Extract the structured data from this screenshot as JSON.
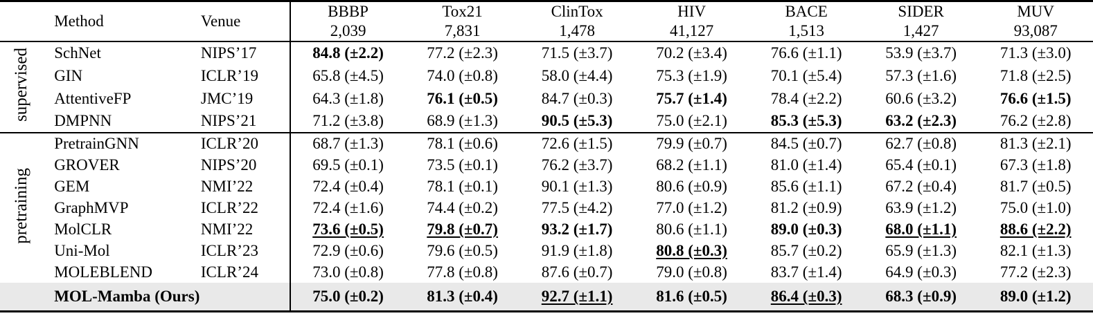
{
  "table": {
    "col_headers": {
      "method": "Method",
      "venue": "Venue"
    },
    "datasets": [
      {
        "name": "BBBP",
        "size": "2,039"
      },
      {
        "name": "Tox21",
        "size": "7,831"
      },
      {
        "name": "ClinTox",
        "size": "1,478"
      },
      {
        "name": "HIV",
        "size": "41,127"
      },
      {
        "name": "BACE",
        "size": "1,513"
      },
      {
        "name": "SIDER",
        "size": "1,427"
      },
      {
        "name": "MUV",
        "size": "93,087"
      }
    ],
    "groups": [
      {
        "label": "supervised",
        "rows": [
          {
            "method": "SchNet",
            "venue": "NIPS’17",
            "cells": [
              {
                "text": "84.8 (±2.2)",
                "bold": true
              },
              {
                "text": "77.2 (±2.3)"
              },
              {
                "text": "71.5 (±3.7)"
              },
              {
                "text": "70.2 (±3.4)"
              },
              {
                "text": "76.6 (±1.1)"
              },
              {
                "text": "53.9 (±3.7)"
              },
              {
                "text": "71.3 (±3.0)"
              }
            ]
          },
          {
            "method": "GIN",
            "venue": "ICLR’19",
            "cells": [
              {
                "text": "65.8 (±4.5)"
              },
              {
                "text": "74.0 (±0.8)"
              },
              {
                "text": "58.0 (±4.4)"
              },
              {
                "text": "75.3 (±1.9)"
              },
              {
                "text": "70.1 (±5.4)"
              },
              {
                "text": "57.3 (±1.6)"
              },
              {
                "text": "71.8 (±2.5)"
              }
            ]
          },
          {
            "method": "AttentiveFP",
            "venue": "JMC’19",
            "cells": [
              {
                "text": "64.3 (±1.8)"
              },
              {
                "text": "76.1 (±0.5)",
                "bold": true
              },
              {
                "text": "84.7 (±0.3)"
              },
              {
                "text": "75.7 (±1.4)",
                "bold": true
              },
              {
                "text": "78.4 (±2.2)"
              },
              {
                "text": "60.6 (±3.2)"
              },
              {
                "text": "76.6 (±1.5)",
                "bold": true
              }
            ]
          },
          {
            "method": "DMPNN",
            "venue": "NIPS’21",
            "cells": [
              {
                "text": "71.2 (±3.8)"
              },
              {
                "text": "68.9 (±1.3)"
              },
              {
                "text": "90.5 (±5.3)",
                "bold": true
              },
              {
                "text": "75.0 (±2.1)"
              },
              {
                "text": "85.3 (±5.3)",
                "bold": true
              },
              {
                "text": "63.2 (±2.3)",
                "bold": true
              },
              {
                "text": "76.2 (±2.8)"
              }
            ]
          }
        ]
      },
      {
        "label": "pretraining",
        "rows": [
          {
            "method": "PretrainGNN",
            "venue": "ICLR’20",
            "cells": [
              {
                "text": "68.7 (±1.3)"
              },
              {
                "text": "78.1 (±0.6)"
              },
              {
                "text": "72.6 (±1.5)"
              },
              {
                "text": "79.9 (±0.7)"
              },
              {
                "text": "84.5 (±0.7)"
              },
              {
                "text": "62.7 (±0.8)"
              },
              {
                "text": "81.3 (±2.1)"
              }
            ]
          },
          {
            "method": "GROVER",
            "venue": "NIPS’20",
            "cells": [
              {
                "text": "69.5 (±0.1)"
              },
              {
                "text": "73.5 (±0.1)"
              },
              {
                "text": "76.2 (±3.7)"
              },
              {
                "text": "68.2 (±1.1)"
              },
              {
                "text": "81.0 (±1.4)"
              },
              {
                "text": "65.4 (±0.1)"
              },
              {
                "text": "67.3 (±1.8)"
              }
            ]
          },
          {
            "method": "GEM",
            "venue": "NMI’22",
            "cells": [
              {
                "text": "72.4 (±0.4)"
              },
              {
                "text": "78.1 (±0.1)"
              },
              {
                "text": "90.1 (±1.3)"
              },
              {
                "text": "80.6 (±0.9)"
              },
              {
                "text": "85.6 (±1.1)"
              },
              {
                "text": "67.2 (±0.4)"
              },
              {
                "text": "81.7 (±0.5)"
              }
            ]
          },
          {
            "method": "GraphMVP",
            "venue": "ICLR’22",
            "cells": [
              {
                "text": "72.4 (±1.6)"
              },
              {
                "text": "74.4 (±0.2)"
              },
              {
                "text": "77.5 (±4.2)"
              },
              {
                "text": "77.0 (±1.2)"
              },
              {
                "text": "81.2 (±0.9)"
              },
              {
                "text": "63.9 (±1.2)"
              },
              {
                "text": "75.0 (±1.0)"
              }
            ]
          },
          {
            "method": "MolCLR",
            "venue": "NMI’22",
            "cells": [
              {
                "text": "73.6 (±0.5)",
                "bold": true,
                "underline": true
              },
              {
                "text": "79.8 (±0.7)",
                "bold": true,
                "underline": true
              },
              {
                "text": "93.2 (±1.7)",
                "bold": true
              },
              {
                "text": "80.6 (±1.1)"
              },
              {
                "text": "89.0 (±0.3)",
                "bold": true
              },
              {
                "text": "68.0 (±1.1)",
                "bold": true,
                "underline": true
              },
              {
                "text": "88.6 (±2.2)",
                "bold": true,
                "underline": true
              }
            ]
          },
          {
            "method": "Uni-Mol",
            "venue": "ICLR’23",
            "cells": [
              {
                "text": "72.9 (±0.6)"
              },
              {
                "text": "79.6 (±0.5)"
              },
              {
                "text": "91.9 (±1.8)"
              },
              {
                "text": "80.8 (±0.3)",
                "bold": true,
                "underline": true
              },
              {
                "text": "85.7 (±0.2)"
              },
              {
                "text": "65.9 (±1.3)"
              },
              {
                "text": "82.1 (±1.3)"
              }
            ]
          },
          {
            "method": "MOLEBLEND",
            "venue": "ICLR’24",
            "cells": [
              {
                "text": "73.0 (±0.8)"
              },
              {
                "text": "77.8 (±0.8)"
              },
              {
                "text": "87.6 (±0.7)"
              },
              {
                "text": "79.0 (±0.8)"
              },
              {
                "text": "83.7 (±1.4)"
              },
              {
                "text": "64.9 (±0.3)"
              },
              {
                "text": "77.2 (±2.3)"
              }
            ]
          }
        ]
      }
    ],
    "highlight_row": {
      "method": "MOL-Mamba (Ours)",
      "cells": [
        {
          "text": "75.0 (±0.2)",
          "bold": true
        },
        {
          "text": "81.3 (±0.4)",
          "bold": true
        },
        {
          "text": "92.7 (±1.1)",
          "bold": true,
          "underline": true
        },
        {
          "text": "81.6 (±0.5)",
          "bold": true
        },
        {
          "text": "86.4 (±0.3)",
          "bold": true,
          "underline": true
        },
        {
          "text": "68.3 (±0.9)",
          "bold": true
        },
        {
          "text": "89.0 (±1.2)",
          "bold": true
        }
      ]
    },
    "colors": {
      "highlight_bg": "#e9e9e9",
      "text": "#000000",
      "border": "#000000"
    }
  }
}
